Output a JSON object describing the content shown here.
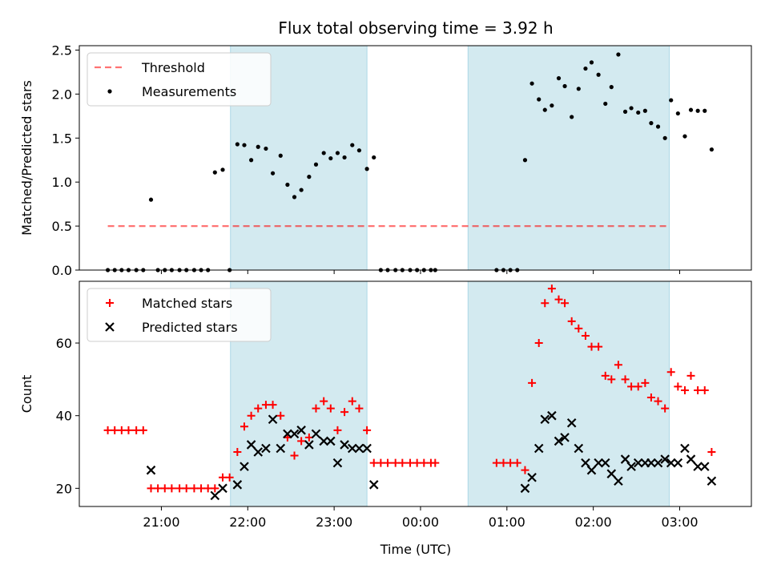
{
  "figure": {
    "title": "Flux total observing time = 3.92 h",
    "xlabel": "Time (UTC)",
    "x_tick_labels": [
      "21:00",
      "22:00",
      "23:00",
      "00:00",
      "01:00",
      "02:00",
      "03:00"
    ]
  },
  "chart_data": [
    {
      "type": "scatter",
      "title": "Flux total observing time = 3.92 h",
      "xlabel": "",
      "ylabel": "Matched/Predicted stars",
      "x_unit": "hours since 20:00 UTC",
      "xlim": [
        0.05,
        7.83
      ],
      "ylim": [
        0,
        2.55
      ],
      "yticks": [
        0.0,
        0.5,
        1.0,
        1.5,
        2.0,
        2.5
      ],
      "ytick_labels": [
        "0.0",
        "0.5",
        "1.0",
        "1.5",
        "2.0",
        "2.5"
      ],
      "shaded_spans": [
        [
          1.8,
          3.38
        ],
        [
          4.55,
          6.88
        ]
      ],
      "shade_color": "#d3eaf0",
      "legend": {
        "position": "upper-left",
        "entries": [
          "Threshold",
          "Measurements"
        ]
      },
      "threshold": {
        "name": "Threshold",
        "y": 0.5,
        "x_start": 0.38,
        "x_end": 6.88,
        "color": "#ff0000"
      },
      "series": [
        {
          "name": "Measurements",
          "color": "#000000",
          "points": [
            [
              0.38,
              0
            ],
            [
              0.46,
              0
            ],
            [
              0.54,
              0
            ],
            [
              0.62,
              0
            ],
            [
              0.71,
              0
            ],
            [
              0.79,
              0
            ],
            [
              0.88,
              0.8
            ],
            [
              0.96,
              0
            ],
            [
              1.04,
              0
            ],
            [
              1.12,
              0
            ],
            [
              1.21,
              0
            ],
            [
              1.29,
              0
            ],
            [
              1.38,
              0
            ],
            [
              1.46,
              0
            ],
            [
              1.54,
              0
            ],
            [
              1.62,
              1.11
            ],
            [
              1.71,
              1.14
            ],
            [
              1.79,
              0
            ],
            [
              1.88,
              1.43
            ],
            [
              1.96,
              1.42
            ],
            [
              2.04,
              1.25
            ],
            [
              2.12,
              1.4
            ],
            [
              2.21,
              1.38
            ],
            [
              2.29,
              1.1
            ],
            [
              2.38,
              1.3
            ],
            [
              2.46,
              0.97
            ],
            [
              2.54,
              0.83
            ],
            [
              2.62,
              0.91
            ],
            [
              2.71,
              1.06
            ],
            [
              2.79,
              1.2
            ],
            [
              2.88,
              1.33
            ],
            [
              2.96,
              1.27
            ],
            [
              3.04,
              1.33
            ],
            [
              3.12,
              1.28
            ],
            [
              3.21,
              1.42
            ],
            [
              3.29,
              1.36
            ],
            [
              3.38,
              1.15
            ],
            [
              3.46,
              1.28
            ],
            [
              3.54,
              0
            ],
            [
              3.62,
              0
            ],
            [
              3.71,
              0
            ],
            [
              3.79,
              0
            ],
            [
              3.88,
              0
            ],
            [
              3.96,
              0
            ],
            [
              4.04,
              0
            ],
            [
              4.12,
              0
            ],
            [
              4.17,
              0
            ],
            [
              4.88,
              0
            ],
            [
              4.96,
              0
            ],
            [
              5.04,
              0
            ],
            [
              5.12,
              0
            ],
            [
              5.21,
              1.25
            ],
            [
              5.29,
              2.12
            ],
            [
              5.37,
              1.94
            ],
            [
              5.44,
              1.82
            ],
            [
              5.52,
              1.87
            ],
            [
              5.6,
              2.18
            ],
            [
              5.67,
              2.09
            ],
            [
              5.75,
              1.74
            ],
            [
              5.83,
              2.06
            ],
            [
              5.91,
              2.29
            ],
            [
              5.98,
              2.36
            ],
            [
              6.06,
              2.22
            ],
            [
              6.14,
              1.89
            ],
            [
              6.21,
              2.08
            ],
            [
              6.29,
              2.45
            ],
            [
              6.37,
              1.8
            ],
            [
              6.44,
              1.84
            ],
            [
              6.52,
              1.79
            ],
            [
              6.6,
              1.81
            ],
            [
              6.67,
              1.67
            ],
            [
              6.75,
              1.63
            ],
            [
              6.83,
              1.5
            ],
            [
              6.9,
              1.93
            ],
            [
              6.98,
              1.78
            ],
            [
              7.06,
              1.52
            ],
            [
              7.13,
              1.82
            ],
            [
              7.21,
              1.81
            ],
            [
              7.29,
              1.81
            ],
            [
              7.37,
              1.37
            ]
          ]
        }
      ]
    },
    {
      "type": "scatter",
      "title": "",
      "xlabel": "Time (UTC)",
      "ylabel": "Count",
      "x_unit": "hours since 20:00 UTC",
      "xlim": [
        0.05,
        7.83
      ],
      "ylim": [
        15,
        77
      ],
      "yticks": [
        20,
        40,
        60
      ],
      "ytick_labels": [
        "20",
        "40",
        "60"
      ],
      "shaded_spans": [
        [
          1.8,
          3.38
        ],
        [
          4.55,
          6.88
        ]
      ],
      "shade_color": "#d3eaf0",
      "legend": {
        "position": "upper-left",
        "entries": [
          "Matched stars",
          "Predicted stars"
        ]
      },
      "series": [
        {
          "name": "Matched stars",
          "marker": "plus",
          "color": "#ff0000",
          "points": [
            [
              0.38,
              36
            ],
            [
              0.46,
              36
            ],
            [
              0.54,
              36
            ],
            [
              0.62,
              36
            ],
            [
              0.71,
              36
            ],
            [
              0.79,
              36
            ],
            [
              0.88,
              20
            ],
            [
              0.96,
              20
            ],
            [
              1.04,
              20
            ],
            [
              1.12,
              20
            ],
            [
              1.21,
              20
            ],
            [
              1.29,
              20
            ],
            [
              1.38,
              20
            ],
            [
              1.46,
              20
            ],
            [
              1.54,
              20
            ],
            [
              1.62,
              20
            ],
            [
              1.71,
              23
            ],
            [
              1.79,
              23
            ],
            [
              1.88,
              30
            ],
            [
              1.96,
              37
            ],
            [
              2.04,
              40
            ],
            [
              2.12,
              42
            ],
            [
              2.21,
              43
            ],
            [
              2.29,
              43
            ],
            [
              2.38,
              40
            ],
            [
              2.46,
              34
            ],
            [
              2.54,
              29
            ],
            [
              2.62,
              33
            ],
            [
              2.71,
              34
            ],
            [
              2.79,
              42
            ],
            [
              2.88,
              44
            ],
            [
              2.96,
              42
            ],
            [
              3.04,
              36
            ],
            [
              3.12,
              41
            ],
            [
              3.21,
              44
            ],
            [
              3.29,
              42
            ],
            [
              3.38,
              36
            ],
            [
              3.46,
              27
            ],
            [
              3.54,
              27
            ],
            [
              3.62,
              27
            ],
            [
              3.71,
              27
            ],
            [
              3.79,
              27
            ],
            [
              3.88,
              27
            ],
            [
              3.96,
              27
            ],
            [
              4.04,
              27
            ],
            [
              4.12,
              27
            ],
            [
              4.17,
              27
            ],
            [
              4.88,
              27
            ],
            [
              4.96,
              27
            ],
            [
              5.04,
              27
            ],
            [
              5.12,
              27
            ],
            [
              5.21,
              25
            ],
            [
              5.29,
              49
            ],
            [
              5.37,
              60
            ],
            [
              5.44,
              71
            ],
            [
              5.52,
              75
            ],
            [
              5.6,
              72
            ],
            [
              5.67,
              71
            ],
            [
              5.75,
              66
            ],
            [
              5.83,
              64
            ],
            [
              5.91,
              62
            ],
            [
              5.98,
              59
            ],
            [
              6.06,
              59
            ],
            [
              6.14,
              51
            ],
            [
              6.21,
              50
            ],
            [
              6.29,
              54
            ],
            [
              6.37,
              50
            ],
            [
              6.44,
              48
            ],
            [
              6.52,
              48
            ],
            [
              6.6,
              49
            ],
            [
              6.67,
              45
            ],
            [
              6.75,
              44
            ],
            [
              6.83,
              42
            ],
            [
              6.9,
              52
            ],
            [
              6.98,
              48
            ],
            [
              7.06,
              47
            ],
            [
              7.13,
              51
            ],
            [
              7.21,
              47
            ],
            [
              7.29,
              47
            ],
            [
              7.37,
              30
            ]
          ]
        },
        {
          "name": "Predicted stars",
          "marker": "x",
          "color": "#000000",
          "points": [
            [
              0.88,
              25
            ],
            [
              1.62,
              18
            ],
            [
              1.71,
              20
            ],
            [
              1.88,
              21
            ],
            [
              1.96,
              26
            ],
            [
              2.04,
              32
            ],
            [
              2.12,
              30
            ],
            [
              2.21,
              31
            ],
            [
              2.29,
              39
            ],
            [
              2.38,
              31
            ],
            [
              2.46,
              35
            ],
            [
              2.54,
              35
            ],
            [
              2.62,
              36
            ],
            [
              2.71,
              32
            ],
            [
              2.79,
              35
            ],
            [
              2.88,
              33
            ],
            [
              2.96,
              33
            ],
            [
              3.04,
              27
            ],
            [
              3.12,
              32
            ],
            [
              3.21,
              31
            ],
            [
              3.29,
              31
            ],
            [
              3.38,
              31
            ],
            [
              3.46,
              21
            ],
            [
              5.21,
              20
            ],
            [
              5.29,
              23
            ],
            [
              5.37,
              31
            ],
            [
              5.44,
              39
            ],
            [
              5.52,
              40
            ],
            [
              5.6,
              33
            ],
            [
              5.67,
              34
            ],
            [
              5.75,
              38
            ],
            [
              5.83,
              31
            ],
            [
              5.91,
              27
            ],
            [
              5.98,
              25
            ],
            [
              6.06,
              27
            ],
            [
              6.14,
              27
            ],
            [
              6.21,
              24
            ],
            [
              6.29,
              22
            ],
            [
              6.37,
              28
            ],
            [
              6.44,
              26
            ],
            [
              6.52,
              27
            ],
            [
              6.6,
              27
            ],
            [
              6.67,
              27
            ],
            [
              6.75,
              27
            ],
            [
              6.83,
              28
            ],
            [
              6.9,
              27
            ],
            [
              6.98,
              27
            ],
            [
              7.06,
              31
            ],
            [
              7.13,
              28
            ],
            [
              7.21,
              26
            ],
            [
              7.29,
              26
            ],
            [
              7.37,
              22
            ]
          ]
        }
      ]
    }
  ]
}
